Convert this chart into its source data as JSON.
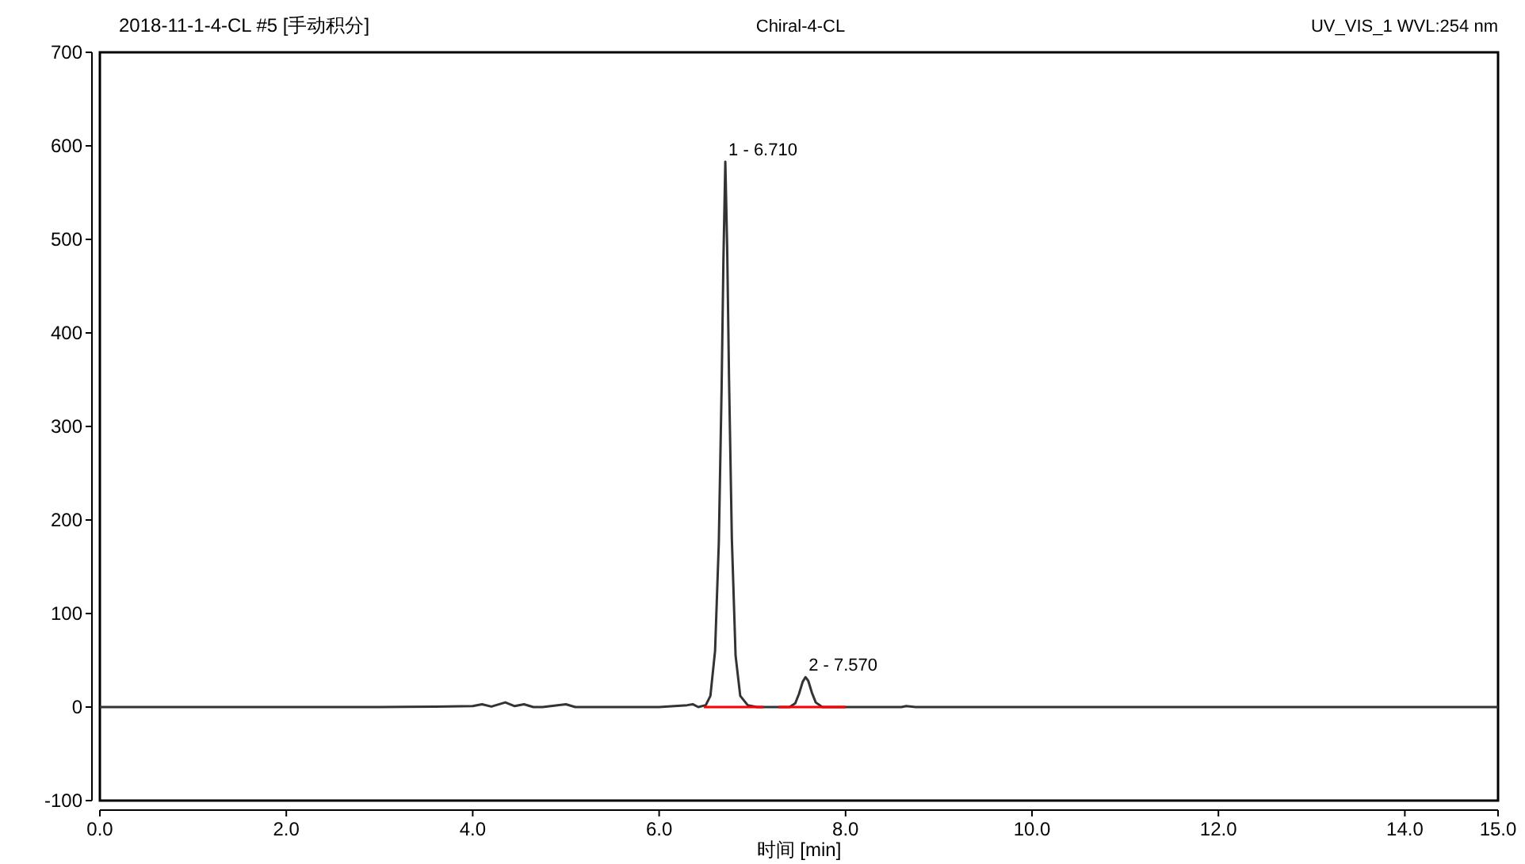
{
  "chart_data": {
    "type": "line",
    "title": "2018-11-1-4-CL #5 [手动积分]",
    "subtitle": "Chiral-4-CL",
    "xlabel": "时间 [min]",
    "annotations": [
      {
        "text": "1 - 6.710",
        "x": 6.71,
        "y": 583
      },
      {
        "text": "2 - 7.570",
        "x": 7.57,
        "y": 32
      },
      "UV_VIS_1 WVL:254 nm"
    ],
    "xlim": [
      0,
      15
    ],
    "ylim": [
      -100,
      700
    ],
    "xticks": [
      {
        "value": 0,
        "label": "0.0"
      },
      {
        "value": 2,
        "label": "2.0"
      },
      {
        "value": 4,
        "label": "4.0"
      },
      {
        "value": 6,
        "label": "6.0"
      },
      {
        "value": 8,
        "label": "8.0"
      },
      {
        "value": 10,
        "label": "10.0"
      },
      {
        "value": 12,
        "label": "12.0"
      },
      {
        "value": 14,
        "label": "14.0"
      },
      {
        "value": 15,
        "label": "15.0"
      }
    ],
    "yticks": [
      -100,
      0,
      100,
      200,
      300,
      400,
      500,
      600,
      700
    ],
    "grid": false,
    "series": [
      {
        "color": "#333333",
        "x": [
          0,
          3.0,
          3.6,
          4.0,
          4.1,
          4.2,
          4.35,
          4.45,
          4.55,
          4.65,
          4.75,
          5.0,
          5.1,
          5.5,
          6.0,
          6.3,
          6.36,
          6.42,
          6.5,
          6.55,
          6.6,
          6.64,
          6.67,
          6.69,
          6.71,
          6.73,
          6.75,
          6.78,
          6.82,
          6.87,
          6.95,
          7.05,
          7.4,
          7.46,
          7.5,
          7.54,
          7.57,
          7.6,
          7.64,
          7.68,
          7.75,
          8.0,
          8.6,
          8.65,
          8.75,
          15.0
        ],
        "values": [
          0,
          0,
          0.5,
          1,
          3,
          0.5,
          5,
          1,
          3,
          0,
          0,
          3,
          0,
          0,
          0,
          2,
          3,
          0,
          2,
          12,
          60,
          175,
          340,
          480,
          583,
          490,
          350,
          180,
          55,
          12,
          2,
          0,
          0,
          4,
          14,
          27,
          32,
          28,
          15,
          5,
          0,
          0,
          0,
          1,
          0,
          0
        ]
      },
      {
        "color": "#ff0000",
        "x": [
          6.48,
          7.12
        ],
        "values": [
          0,
          0
        ]
      },
      {
        "color": "#ff0000",
        "x": [
          7.28,
          8.0
        ],
        "values": [
          0,
          0
        ]
      }
    ]
  }
}
